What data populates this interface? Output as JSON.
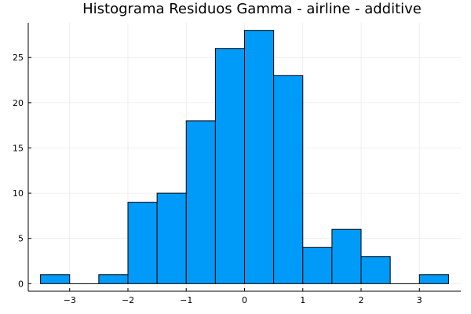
{
  "chart_data": {
    "type": "bar",
    "title": "Histograma Residuos Gamma - airline - additive",
    "xlabel": "",
    "ylabel": "",
    "bin_edges": [
      -3.5,
      -3.0,
      -2.5,
      -2.0,
      -1.5,
      -1.0,
      -0.5,
      0.0,
      0.5,
      1.0,
      1.5,
      2.0,
      2.5,
      3.0,
      3.5
    ],
    "values": [
      1,
      0,
      1,
      9,
      10,
      18,
      26,
      28,
      23,
      4,
      6,
      3,
      0,
      1
    ],
    "xlim": [
      -3.71,
      3.71
    ],
    "ylim": [
      -0.84,
      28.84
    ],
    "xticks": [
      -3,
      -2,
      -1,
      0,
      1,
      2,
      3
    ],
    "xtick_labels": [
      "−3",
      "−2",
      "−1",
      "0",
      "1",
      "2",
      "3"
    ],
    "yticks": [
      0,
      5,
      10,
      15,
      20,
      25
    ],
    "ytick_labels": [
      "0",
      "5",
      "10",
      "15",
      "20",
      "25"
    ],
    "bar_color": "#009AF9",
    "grid": true,
    "legend": "none"
  }
}
